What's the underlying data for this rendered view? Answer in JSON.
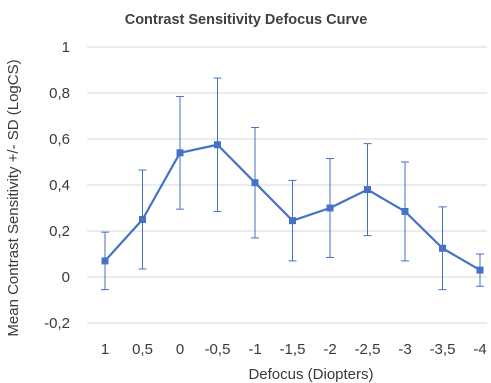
{
  "chart_data": {
    "type": "line",
    "title": "Contrast Sensitivity Defocus Curve",
    "xlabel": "Defocus (Diopters)",
    "ylabel": "Mean Contrast Sensitivity +/- SD  (LogCS)",
    "categories": [
      "1",
      "0,5",
      "0",
      "-0,5",
      "-1",
      "-1,5",
      "-2",
      "-2,5",
      "-3",
      "-3,5",
      "-4"
    ],
    "series": [
      {
        "values": [
          0.07,
          0.25,
          0.54,
          0.575,
          0.41,
          0.245,
          0.3,
          0.38,
          0.285,
          0.125,
          0.03
        ],
        "error": [
          0.125,
          0.215,
          0.245,
          0.29,
          0.24,
          0.175,
          0.215,
          0.2,
          0.215,
          0.18,
          0.07
        ]
      }
    ],
    "ylim": [
      -0.2,
      1
    ],
    "yticks": [
      {
        "value": -0.2,
        "label": "-0,2"
      },
      {
        "value": 0,
        "label": "0"
      },
      {
        "value": 0.2,
        "label": "0,2"
      },
      {
        "value": 0.4,
        "label": "0,4"
      },
      {
        "value": 0.6,
        "label": "0,6"
      },
      {
        "value": 0.8,
        "label": "0,8"
      },
      {
        "value": 1,
        "label": "1"
      }
    ],
    "grid": true,
    "legend": "none",
    "colors": {
      "line": "#4472C4",
      "error": "#4472C4",
      "grid": "#d9d9d9"
    }
  }
}
